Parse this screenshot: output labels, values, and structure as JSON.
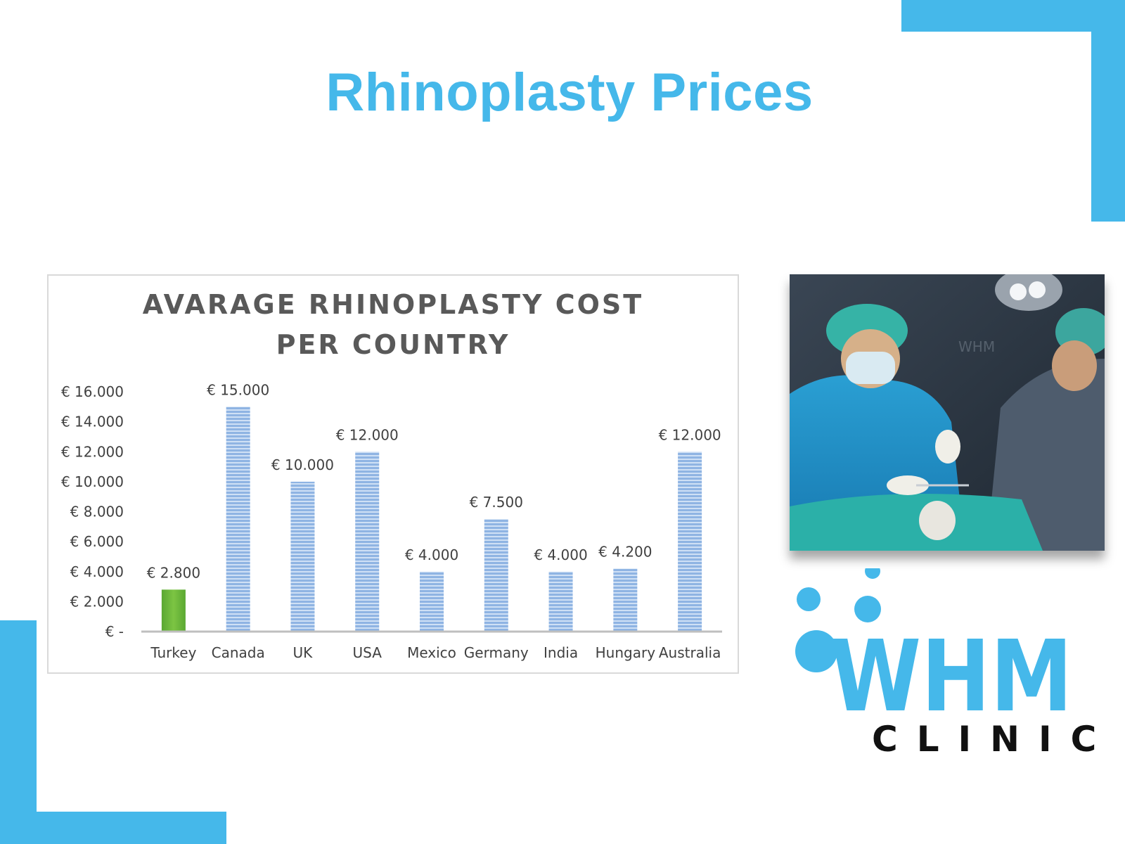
{
  "page": {
    "title": "Rhinoplasty Prices",
    "accent_color": "#45b8ea"
  },
  "chart_data": {
    "type": "bar",
    "title": "AVARAGE RHINOPLASTY COST PER COUNTRY",
    "title_lines": [
      "AVARAGE RHINOPLASTY COST",
      "PER COUNTRY"
    ],
    "categories": [
      "Turkey",
      "Canada",
      "UK",
      "USA",
      "Mexico",
      "Germany",
      "India",
      "Hungary",
      "Australia"
    ],
    "values": [
      2800,
      15000,
      10000,
      12000,
      4000,
      7500,
      4000,
      4200,
      12000
    ],
    "data_labels": [
      "€ 2.800",
      "€ 15.000",
      "€ 10.000",
      "€ 12.000",
      "€ 4.000",
      "€ 7.500",
      "€ 4.000",
      "€ 4.200",
      "€ 12.000"
    ],
    "ylim": [
      0,
      16000
    ],
    "yticks": [
      0,
      2000,
      4000,
      6000,
      8000,
      10000,
      12000,
      14000,
      16000
    ],
    "ytick_labels": [
      "€ -",
      "€ 2.000",
      "€ 4.000",
      "€ 6.000",
      "€ 8.000",
      "€ 10.000",
      "€ 12.000",
      "€ 14.000",
      "€ 16.000"
    ],
    "xlabel": "",
    "ylabel": "",
    "grid": false,
    "legend": false,
    "bar_color": "#8fb4e3",
    "highlight_bar_color": "#7cc443",
    "highlight_category": "Turkey"
  },
  "photo": {
    "icon": "surgery-photo",
    "watermark": "WHM"
  },
  "logo": {
    "brand": "WHM",
    "subtitle": "CLINIC",
    "brand_color": "#45b8ea"
  }
}
